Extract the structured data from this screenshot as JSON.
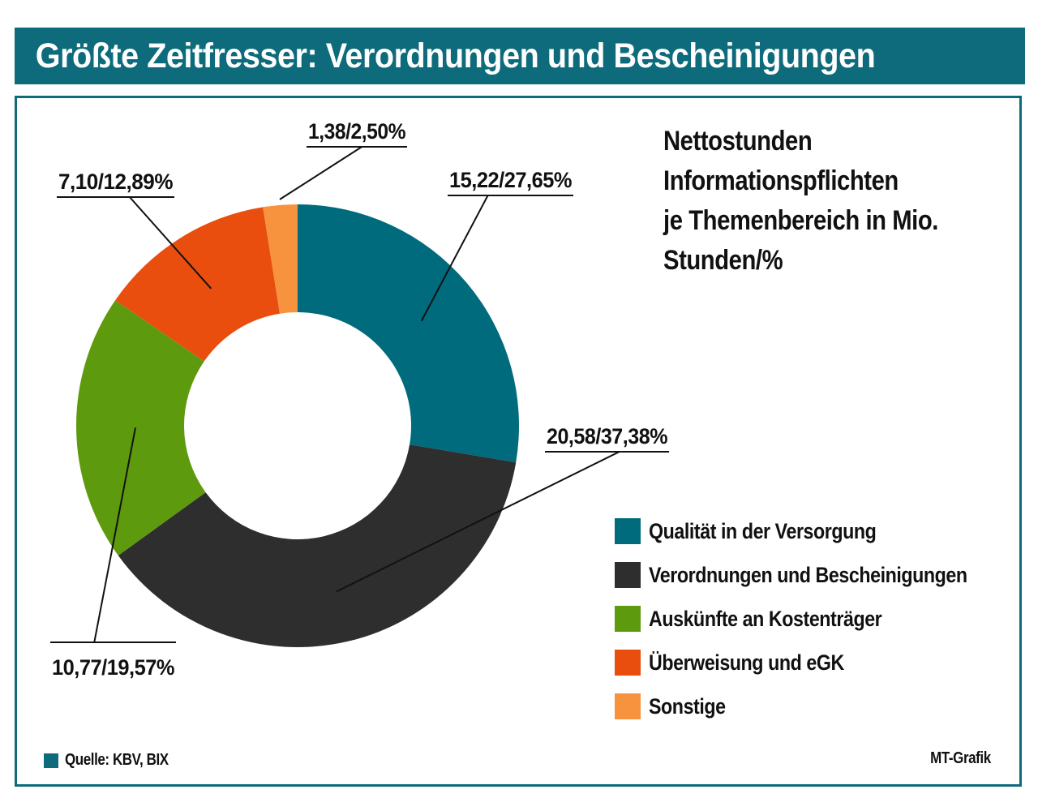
{
  "title": "Größte Zeitfresser: Verordnungen und Bescheinigungen",
  "subtitle": "Nettostunden\nInformationspflichten\nje Themenbereich in Mio.\nStunden/%",
  "footer": {
    "source": "Quelle: KBV, BIX",
    "credit": "MT-Grafik"
  },
  "colors": {
    "frame": "#0e6b7b"
  },
  "chart_data": {
    "type": "pie",
    "donut": true,
    "series": [
      {
        "name": "Qualität in der Versorgung",
        "value": 15.22,
        "percent": 27.65,
        "label": "15,22/27,65%",
        "color": "#006b7c"
      },
      {
        "name": "Verordnungen und Bescheinigungen",
        "value": 20.58,
        "percent": 37.38,
        "label": "20,58/37,38%",
        "color": "#2e2e2e"
      },
      {
        "name": "Auskünfte an Kostenträger",
        "value": 10.77,
        "percent": 19.57,
        "label": "10,77/19,57%",
        "color": "#5e9a0d"
      },
      {
        "name": "Überweisung und eGK",
        "value": 7.1,
        "percent": 12.89,
        "label": "7,10/12,89%",
        "color": "#e94e0f"
      },
      {
        "name": "Sonstige",
        "value": 1.38,
        "percent": 2.5,
        "label": "1,38/2,50%",
        "color": "#f7923f"
      }
    ],
    "legend_position": "bottom-right"
  }
}
